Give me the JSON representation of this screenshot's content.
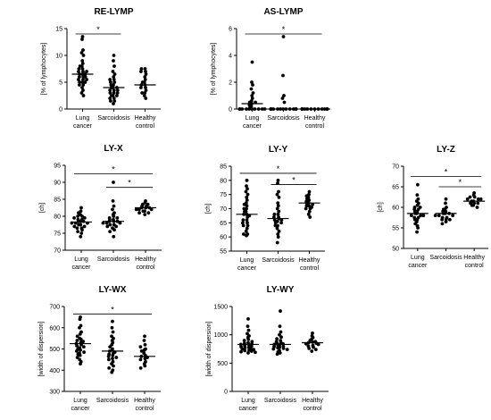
{
  "chart_data": [
    {
      "type": "scatter",
      "title": "RE-LYMP",
      "ylabel": "[% of lymphocytes]",
      "ylim": [
        0,
        15
      ],
      "yticks": [
        0,
        5,
        10,
        15
      ],
      "categories": [
        "Lung\ncancer",
        "Sarcoidosis",
        "Healthy\ncontrol"
      ],
      "values": [
        [
          13.5,
          13.0,
          11.0,
          10.5,
          10.0,
          9.0,
          8.5,
          8.0,
          8.0,
          7.5,
          7.5,
          7.0,
          7.0,
          7.0,
          6.5,
          6.5,
          6.5,
          6.0,
          6.0,
          6.0,
          5.5,
          5.5,
          5.5,
          5.0,
          5.0,
          5.0,
          4.5,
          4.5,
          4.0,
          3.5,
          3.0,
          2.5
        ],
        [
          10.0,
          9.0,
          8.0,
          7.0,
          6.5,
          6.0,
          5.5,
          5.5,
          5.0,
          5.0,
          4.5,
          4.5,
          4.0,
          4.0,
          4.0,
          3.5,
          3.5,
          3.5,
          3.0,
          3.0,
          3.0,
          2.5,
          2.5,
          2.5,
          2.0,
          2.0,
          1.5,
          1.5,
          1.0
        ],
        [
          7.5,
          7.5,
          7.0,
          7.0,
          6.5,
          6.0,
          5.5,
          5.0,
          5.0,
          4.5,
          4.5,
          4.0,
          4.0,
          3.5,
          3.0,
          3.0,
          2.5,
          2.0
        ]
      ],
      "medians": [
        6.5,
        4.0,
        4.5
      ],
      "significance": [
        {
          "from": 0,
          "to": 1,
          "label": "*",
          "y": 14.0
        }
      ]
    },
    {
      "type": "scatter",
      "title": "AS-LYMP",
      "ylabel": "[% of lymphocytes]",
      "ylim": [
        0,
        6
      ],
      "yticks": [
        0,
        2,
        4,
        6
      ],
      "categories": [
        "Lung\ncancer",
        "Sarcoidosis",
        "Healthy\ncontrol"
      ],
      "values": [
        [
          3.5,
          2.0,
          1.8,
          1.5,
          1.2,
          1.0,
          0.8,
          0.6,
          0.5,
          0.5,
          0.4,
          0.3,
          0.2,
          0.1,
          0,
          0,
          0,
          0,
          0,
          0,
          0,
          0,
          0,
          0
        ],
        [
          5.4,
          2.5,
          1.0,
          0.8,
          0.5,
          0,
          0,
          0,
          0,
          0,
          0,
          0,
          0,
          0,
          0,
          0,
          0,
          0,
          0,
          0,
          0
        ],
        [
          0,
          0,
          0,
          0,
          0,
          0,
          0,
          0,
          0,
          0,
          0,
          0,
          0,
          0,
          0,
          0,
          0,
          0
        ]
      ],
      "medians": [
        0.4,
        0,
        0
      ],
      "significance": [
        {
          "from": 0,
          "to": 2,
          "label": "*",
          "y": 5.6
        }
      ]
    },
    {
      "type": "scatter",
      "title": "LY-X",
      "ylabel": "[ch]",
      "ylim": [
        70,
        95
      ],
      "yticks": [
        70,
        75,
        80,
        85,
        90,
        95
      ],
      "categories": [
        "Lung\ncancer",
        "Sarcoidosis",
        "Healthy\ncontrol"
      ],
      "values": [
        [
          82.5,
          81.5,
          81.0,
          80.5,
          80.0,
          80.0,
          79.5,
          79.5,
          79.0,
          79.0,
          78.5,
          78.5,
          78.5,
          78.0,
          78.0,
          78.0,
          77.5,
          77.5,
          77.0,
          77.0,
          76.5,
          76.5,
          76.0,
          75.5,
          75.0,
          74.0
        ],
        [
          90.0,
          84.5,
          83.0,
          82.0,
          81.0,
          80.5,
          80.0,
          79.5,
          79.5,
          79.0,
          79.0,
          78.5,
          78.5,
          78.5,
          78.0,
          78.0,
          78.0,
          77.5,
          77.5,
          77.0,
          77.0,
          76.5,
          76.0,
          75.5,
          74.0
        ],
        [
          84.5,
          84.0,
          83.5,
          83.5,
          83.0,
          83.0,
          82.5,
          82.5,
          82.5,
          82.0,
          82.0,
          82.0,
          81.5,
          81.5,
          81.0,
          81.0,
          80.5
        ]
      ],
      "medians": [
        78.3,
        78.5,
        82.5
      ],
      "significance": [
        {
          "from": 0,
          "to": 2,
          "label": "*",
          "y": 92.5
        },
        {
          "from": 1,
          "to": 2,
          "label": "*",
          "y": 88.5
        }
      ]
    },
    {
      "type": "scatter",
      "title": "LY-Y",
      "ylabel": "[ch]",
      "ylim": [
        55,
        85
      ],
      "yticks": [
        55,
        60,
        65,
        70,
        75,
        80,
        85
      ],
      "categories": [
        "Lung\ncancer",
        "Sarcoidosis",
        "Healthy\ncontrol"
      ],
      "values": [
        [
          80.0,
          78.0,
          77.0,
          76.0,
          75.0,
          74.0,
          73.0,
          72.0,
          71.5,
          71.0,
          70.0,
          70.0,
          69.0,
          69.0,
          68.0,
          68.0,
          67.5,
          67.0,
          66.0,
          66.0,
          65.0,
          65.0,
          64.0,
          64.0,
          63.0,
          62.0,
          61.0,
          61.0,
          60.5
        ],
        [
          80.0,
          79.0,
          76.0,
          75.0,
          74.0,
          72.0,
          71.0,
          70.0,
          69.0,
          68.0,
          68.0,
          67.0,
          67.0,
          66.5,
          66.0,
          66.0,
          65.5,
          65.0,
          65.0,
          64.0,
          64.0,
          63.0,
          62.0,
          61.0,
          60.0,
          58.0
        ],
        [
          76.0,
          75.0,
          74.5,
          74.0,
          73.5,
          73.0,
          72.5,
          72.0,
          72.0,
          71.5,
          71.0,
          71.0,
          70.5,
          70.0,
          70.0,
          69.0,
          68.0,
          67.0
        ]
      ],
      "medians": [
        68.0,
        66.5,
        72.0
      ],
      "significance": [
        {
          "from": 0,
          "to": 2,
          "label": "*",
          "y": 82.5
        },
        {
          "from": 1,
          "to": 2,
          "label": "*",
          "y": 78.5
        }
      ]
    },
    {
      "type": "scatter",
      "title": "LY-Z",
      "ylabel": "[ch]",
      "ylim": [
        50,
        70
      ],
      "yticks": [
        50,
        55,
        60,
        65,
        70
      ],
      "categories": [
        "Lung\ncancer",
        "Sarcoidosis",
        "Healthy\ncontrol"
      ],
      "values": [
        [
          65.5,
          63.0,
          62.0,
          61.5,
          61.0,
          60.5,
          60.0,
          60.0,
          59.5,
          59.5,
          59.0,
          59.0,
          58.5,
          58.5,
          58.0,
          58.0,
          58.0,
          57.5,
          57.5,
          57.0,
          57.0,
          56.5,
          56.0,
          55.5,
          55.0,
          54.0
        ],
        [
          62.0,
          61.0,
          60.0,
          59.5,
          59.5,
          59.0,
          59.0,
          58.5,
          58.5,
          58.5,
          58.0,
          58.0,
          58.0,
          57.5,
          57.5,
          57.0,
          57.0,
          57.0,
          56.5,
          56.0
        ],
        [
          63.5,
          63.0,
          62.5,
          62.5,
          62.0,
          62.0,
          62.0,
          61.5,
          61.5,
          61.0,
          61.0,
          61.0,
          60.5,
          60.5,
          60.0
        ]
      ],
      "medians": [
        58.5,
        58.5,
        61.5
      ],
      "significance": [
        {
          "from": 0,
          "to": 2,
          "label": "*",
          "y": 67.5
        },
        {
          "from": 1,
          "to": 2,
          "label": "*",
          "y": 65.0
        }
      ]
    },
    {
      "type": "scatter",
      "title": "LY-WX",
      "ylabel": "[width of dispersion]",
      "ylim": [
        300,
        700
      ],
      "yticks": [
        300,
        400,
        500,
        600,
        700
      ],
      "categories": [
        "Lung\ncancer",
        "Sarcoidosis",
        "Healthy\ncontrol"
      ],
      "values": [
        [
          650,
          640,
          610,
          600,
          580,
          570,
          560,
          550,
          545,
          540,
          535,
          530,
          525,
          520,
          515,
          510,
          505,
          500,
          495,
          490,
          485,
          480,
          475,
          470,
          460,
          450,
          440,
          430
        ],
        [
          630,
          600,
          580,
          560,
          550,
          540,
          530,
          520,
          510,
          500,
          495,
          490,
          485,
          480,
          475,
          470,
          465,
          460,
          455,
          450,
          440,
          430,
          420,
          410,
          400,
          390
        ],
        [
          560,
          540,
          520,
          510,
          500,
          495,
          490,
          480,
          470,
          465,
          460,
          455,
          450,
          440,
          430,
          420,
          410
        ]
      ],
      "medians": [
        525,
        490,
        465
      ],
      "significance": [
        {
          "from": 0,
          "to": 2,
          "label": "*",
          "y": 665
        }
      ]
    },
    {
      "type": "scatter",
      "title": "LY-WY",
      "ylabel": "[width of dispersion]",
      "ylim": [
        0,
        1500
      ],
      "yticks": [
        0,
        500,
        1000,
        1500
      ],
      "categories": [
        "Lung\ncancer",
        "Sarcoidosis",
        "Healthy\ncontrol"
      ],
      "values": [
        [
          1280,
          1150,
          1080,
          1020,
          980,
          950,
          920,
          900,
          880,
          860,
          850,
          840,
          830,
          820,
          810,
          800,
          790,
          780,
          770,
          760,
          750,
          740,
          730,
          720,
          710,
          700,
          690,
          680
        ],
        [
          1420,
          1150,
          1050,
          1000,
          960,
          930,
          900,
          880,
          860,
          850,
          840,
          830,
          820,
          810,
          800,
          790,
          780,
          770,
          760,
          750,
          740,
          720,
          700,
          680,
          660
        ],
        [
          1030,
          980,
          950,
          920,
          900,
          880,
          870,
          860,
          850,
          840,
          830,
          810,
          800,
          780,
          760,
          740,
          710
        ]
      ],
      "medians": [
        830,
        830,
        860
      ],
      "significance": []
    }
  ]
}
